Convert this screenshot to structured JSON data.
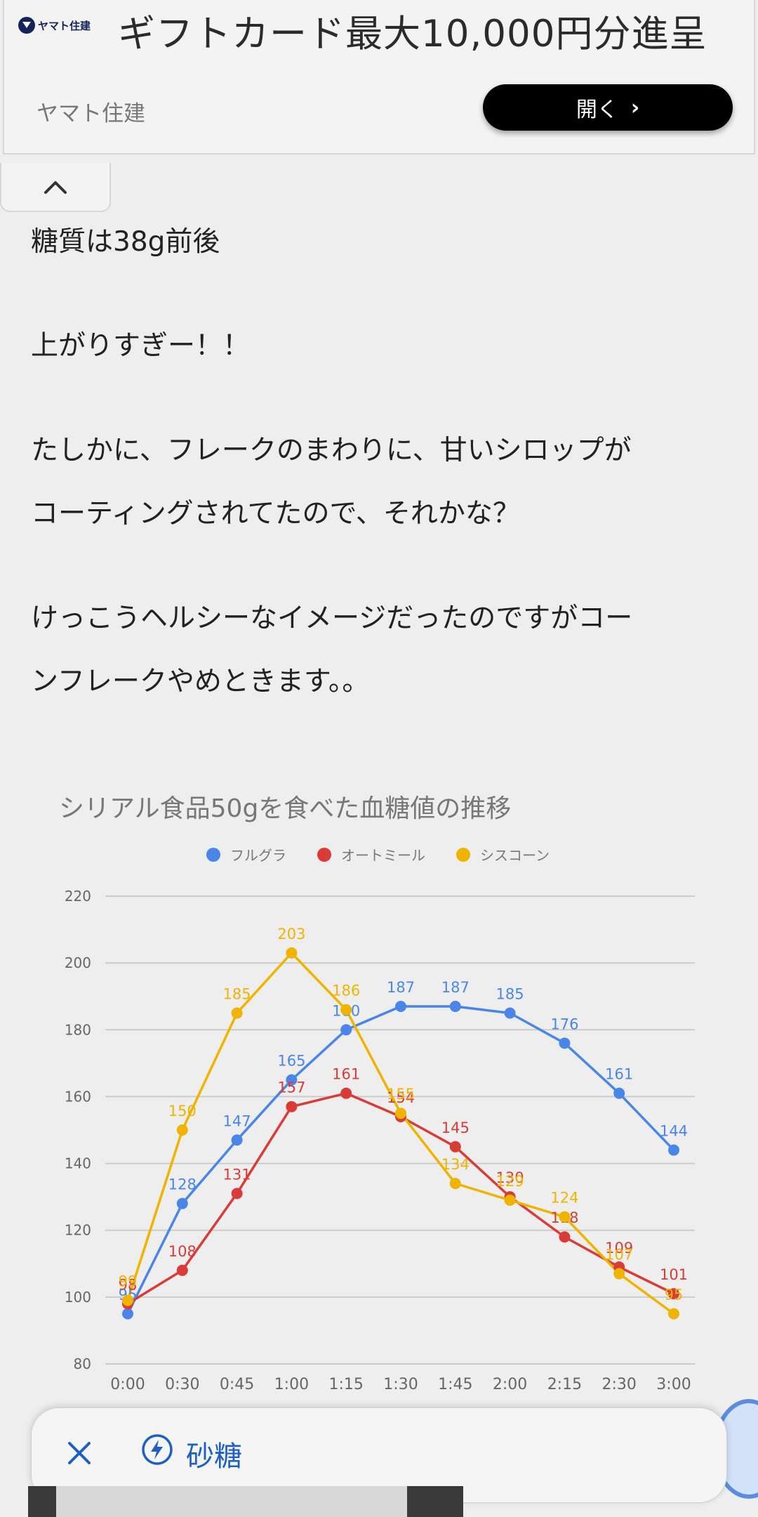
{
  "ad": {
    "logo_text": "ヤマト住建",
    "headline": "ギフトカード最大10,000円分進呈",
    "sponsor": "ヤマト住建",
    "open_label": "開く"
  },
  "article": {
    "paragraphs": [
      [
        "糖質は38g前後"
      ],
      [
        "上がりすぎー！！"
      ],
      [
        "たしかに、フレークのまわりに、甘いシロップが",
        "コーティングされてたので、それかな？"
      ],
      [
        "けっこうヘルシーなイメージだったのですがコー",
        "ンフレークやめときます。。"
      ]
    ]
  },
  "chart_data": {
    "type": "line",
    "title": "シリアル食品50gを食べた血糖値の推移",
    "xlabel": "",
    "ylabel": "",
    "categories": [
      "0:00",
      "0:30",
      "0:45",
      "1:00",
      "1:15",
      "1:30",
      "1:45",
      "2:00",
      "2:15",
      "2:30",
      "3:00"
    ],
    "ylim": [
      80,
      220
    ],
    "yticks": [
      80,
      100,
      120,
      140,
      160,
      180,
      200,
      220
    ],
    "grid": true,
    "legend_position": "top",
    "series": [
      {
        "name": "フルグラ",
        "color": "#4a86e8",
        "values": [
          95,
          128,
          147,
          165,
          180,
          187,
          187,
          185,
          176,
          161,
          144
        ]
      },
      {
        "name": "オートミール",
        "color": "#d93b36",
        "values": [
          98,
          108,
          131,
          157,
          161,
          154,
          145,
          130,
          118,
          109,
          101
        ]
      },
      {
        "name": "シスコーン",
        "color": "#f0b400",
        "values": [
          99,
          150,
          185,
          203,
          186,
          155,
          134,
          129,
          124,
          107,
          95
        ]
      }
    ]
  },
  "bottom_bar": {
    "search_text": "砂糖"
  }
}
